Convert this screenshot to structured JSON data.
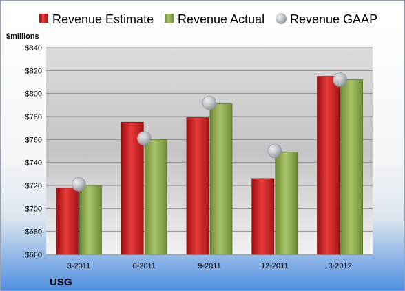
{
  "chart_data": {
    "type": "bar",
    "company": "USG",
    "ylabel": "$millions",
    "categories": [
      "3-2011",
      "6-2011",
      "9-2011",
      "12-2011",
      "3-2012"
    ],
    "ylim": [
      660,
      840
    ],
    "yticks": [
      660,
      680,
      700,
      720,
      740,
      760,
      780,
      800,
      820,
      840
    ],
    "ytick_labels": [
      "$660",
      "$680",
      "$700",
      "$720",
      "$740",
      "$760",
      "$780",
      "$800",
      "$820",
      "$840"
    ],
    "grid": true,
    "legend": "top",
    "series": [
      {
        "name": "Revenue Estimate",
        "kind": "bar",
        "color": "#d42020",
        "values": [
          718,
          775,
          779,
          726,
          815
        ]
      },
      {
        "name": "Revenue Actual",
        "kind": "bar",
        "color": "#8fac4f",
        "values": [
          720,
          760,
          791,
          749,
          812
        ]
      },
      {
        "name": "Revenue GAAP",
        "kind": "marker",
        "color": "#b8bcc2",
        "values": [
          721,
          761,
          792,
          750,
          812
        ]
      }
    ]
  }
}
